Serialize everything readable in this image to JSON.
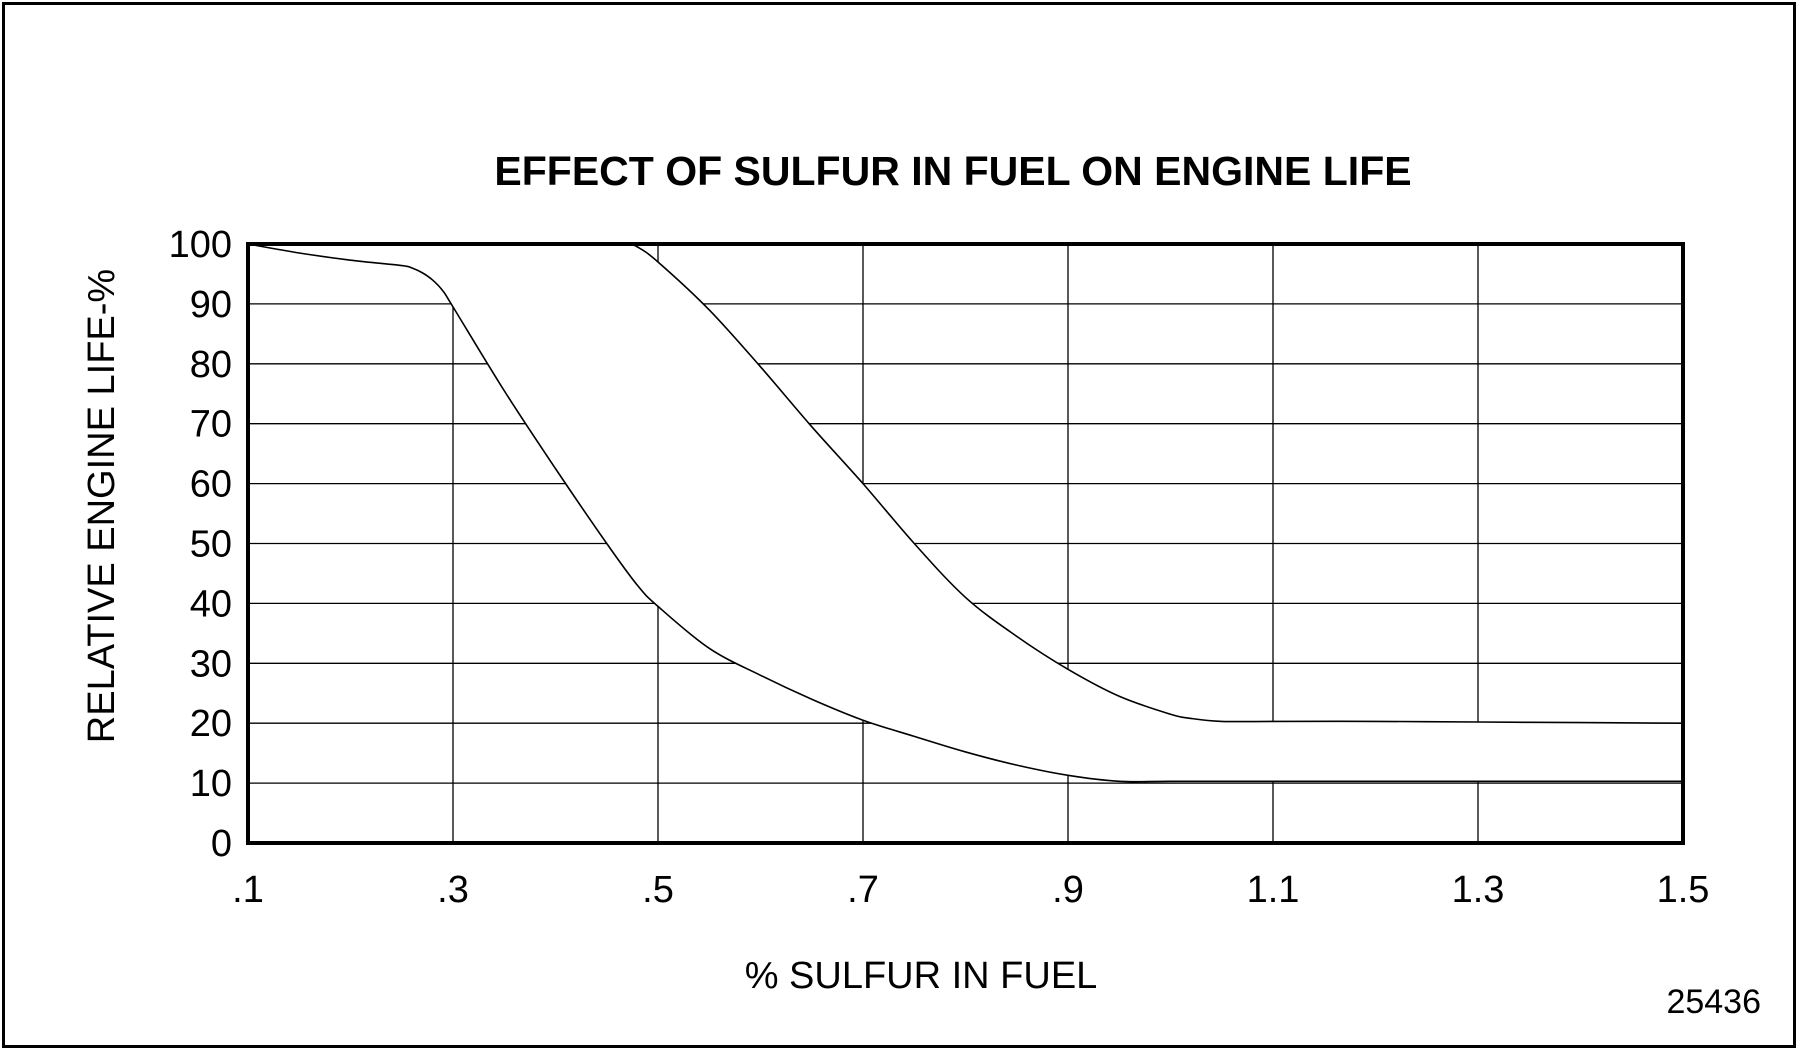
{
  "chart_data": {
    "type": "area",
    "title": "EFFECT OF SULFUR IN FUEL ON ENGINE LIFE",
    "xlabel": "% SULFUR IN FUEL",
    "ylabel": "RELATIVE ENGINE LIFE-%",
    "xlim": [
      0.1,
      1.5
    ],
    "ylim": [
      0,
      100
    ],
    "x_ticks": [
      0.1,
      0.3,
      0.5,
      0.7,
      0.9,
      1.1,
      1.3,
      1.5
    ],
    "x_tick_labels": [
      ".1",
      ".3",
      ".5",
      ".7",
      ".9",
      "1.1",
      "1.3",
      "1.5"
    ],
    "y_ticks": [
      0,
      10,
      20,
      30,
      40,
      50,
      60,
      70,
      80,
      90,
      100
    ],
    "y_tick_labels": [
      "0",
      "10",
      "20",
      "30",
      "40",
      "50",
      "60",
      "70",
      "80",
      "90",
      "100"
    ],
    "grid": true,
    "series": [
      {
        "x": [
          0.1,
          0.15,
          0.2,
          0.25,
          0.26,
          0.27,
          0.28,
          0.29,
          0.3,
          0.35,
          0.4,
          0.45,
          0.48,
          0.5,
          0.55,
          0.6,
          0.65,
          0.7,
          0.75,
          0.8,
          0.85,
          0.9,
          0.95,
          1.0,
          1.1,
          1.2,
          1.3,
          1.4,
          1.5
        ],
        "y": [
          100,
          98.5,
          97.3,
          96.4,
          96.0,
          95.2,
          94.0,
          92.2,
          89.5,
          75.5,
          62.5,
          50.0,
          43.0,
          39.5,
          32.5,
          28.0,
          24.0,
          20.5,
          17.8,
          15.2,
          13.0,
          11.3,
          10.3,
          10.3,
          10.3,
          10.3,
          10.3,
          10.3,
          10.3
        ]
      },
      {
        "x": [
          0.1,
          0.3,
          0.45,
          0.47,
          0.48,
          0.5,
          0.55,
          0.6,
          0.65,
          0.7,
          0.75,
          0.8,
          0.85,
          0.9,
          0.95,
          1.0,
          1.02,
          1.05,
          1.1,
          1.2,
          1.3,
          1.4,
          1.5
        ],
        "y": [
          100,
          100,
          100,
          100,
          99.5,
          97.0,
          89.0,
          79.5,
          69.5,
          60.0,
          50.0,
          41.0,
          34.5,
          29.0,
          24.5,
          21.5,
          20.8,
          20.3,
          20.3,
          20.3,
          20.2,
          20.1,
          20.0
        ]
      }
    ]
  },
  "figure_id": "25436"
}
